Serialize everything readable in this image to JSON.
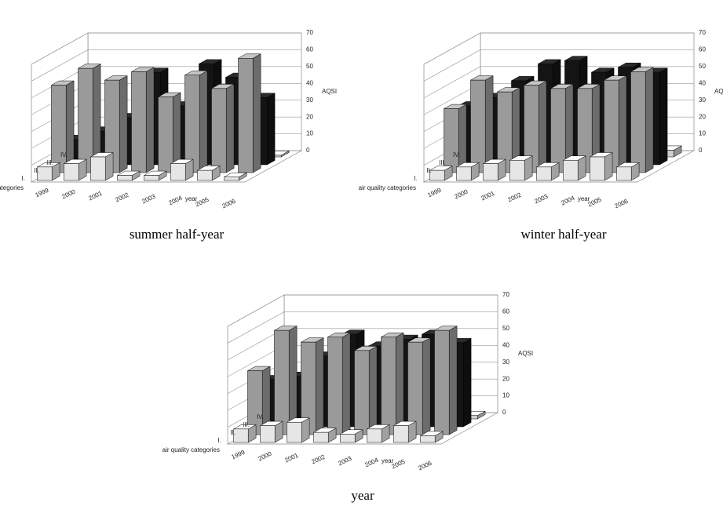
{
  "chart_data": [
    {
      "type": "bar3d",
      "caption": "summer half-year",
      "xlabel": "year",
      "ylabel": "AQSI",
      "zlabel": "air quality categories",
      "categories": [
        "1999",
        "2000",
        "2001",
        "2002",
        "2003",
        "2004",
        "2005",
        "2006"
      ],
      "ylim": [
        0,
        70
      ],
      "yticks": [
        0,
        10,
        20,
        30,
        40,
        50,
        60,
        70
      ],
      "series": [
        {
          "name": "I.",
          "color": "#e6e6e6",
          "values": [
            8,
            10,
            14,
            3,
            3,
            10,
            6,
            2
          ]
        },
        {
          "name": "II.",
          "color": "#9a9a9a",
          "values": [
            52,
            62,
            55,
            60,
            45,
            58,
            50,
            68
          ]
        },
        {
          "name": "III.",
          "color": "#141414",
          "values": [
            15,
            20,
            28,
            55,
            35,
            60,
            52,
            40
          ]
        },
        {
          "name": "IV.",
          "color": "#cfcfcf",
          "values": [
            5,
            6,
            4,
            3,
            2,
            4,
            3,
            1
          ]
        }
      ]
    },
    {
      "type": "bar3d",
      "caption": "winter half-year",
      "xlabel": "year",
      "ylabel": "AQSI",
      "zlabel": "air quality categories",
      "categories": [
        "1999",
        "2000",
        "2001",
        "2002",
        "2003",
        "2004",
        "2005",
        "2006"
      ],
      "ylim": [
        0,
        70
      ],
      "yticks": [
        0,
        10,
        20,
        30,
        40,
        50,
        60,
        70
      ],
      "series": [
        {
          "name": "I.",
          "color": "#e6e6e6",
          "values": [
            6,
            8,
            10,
            12,
            8,
            12,
            14,
            8
          ]
        },
        {
          "name": "II.",
          "color": "#9a9a9a",
          "values": [
            38,
            55,
            48,
            52,
            50,
            50,
            55,
            60
          ]
        },
        {
          "name": "III.",
          "color": "#141414",
          "values": [
            35,
            40,
            50,
            60,
            62,
            55,
            58,
            55
          ]
        },
        {
          "name": "IV.",
          "color": "#cfcfcf",
          "values": [
            2,
            2,
            2,
            3,
            3,
            4,
            6,
            4
          ]
        }
      ]
    },
    {
      "type": "bar3d",
      "caption": "year",
      "xlabel": "year",
      "ylabel": "AQSI",
      "zlabel": "air quality categories",
      "categories": [
        "1999",
        "2000",
        "2001",
        "2002",
        "2003",
        "2004",
        "2005",
        "2006"
      ],
      "ylim": [
        0,
        70
      ],
      "yticks": [
        0,
        10,
        20,
        30,
        40,
        50,
        60,
        70
      ],
      "series": [
        {
          "name": "I.",
          "color": "#e6e6e6",
          "values": [
            8,
            10,
            12,
            6,
            5,
            8,
            10,
            4
          ]
        },
        {
          "name": "II.",
          "color": "#9a9a9a",
          "values": [
            38,
            62,
            55,
            58,
            50,
            58,
            55,
            62
          ]
        },
        {
          "name": "III.",
          "color": "#141414",
          "values": [
            28,
            30,
            42,
            55,
            48,
            52,
            55,
            50
          ]
        },
        {
          "name": "IV.",
          "color": "#cfcfcf",
          "values": [
            3,
            4,
            3,
            4,
            3,
            4,
            5,
            2
          ]
        }
      ]
    }
  ]
}
